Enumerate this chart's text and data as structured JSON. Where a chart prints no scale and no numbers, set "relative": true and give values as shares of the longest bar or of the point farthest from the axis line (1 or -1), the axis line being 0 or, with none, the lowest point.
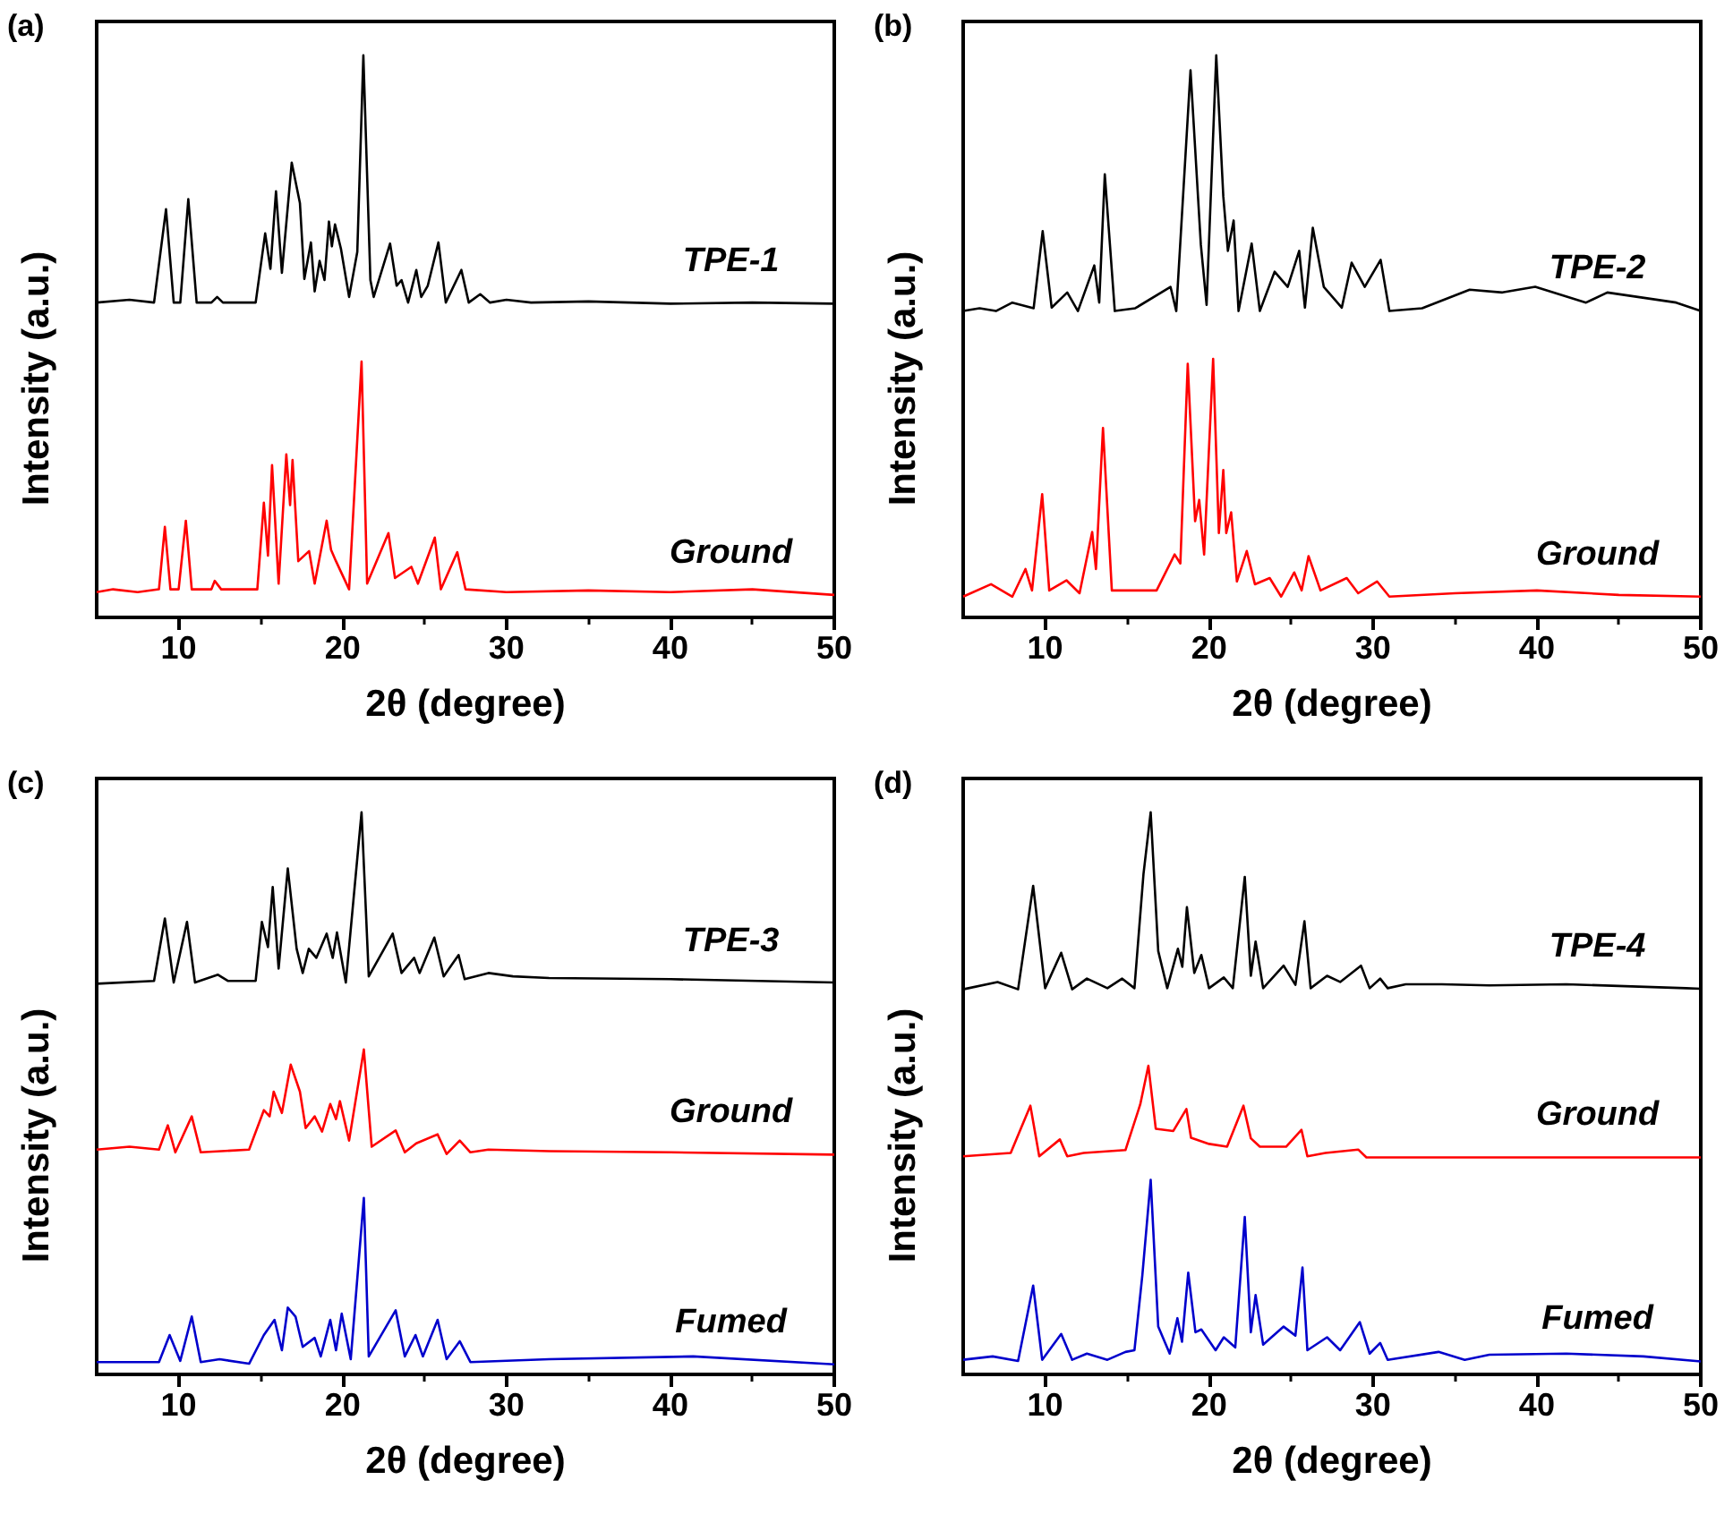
{
  "chart_data": [
    {
      "type": "line",
      "relative": true,
      "xlabel": "2θ (degree)",
      "ylabel": "Intensity (a.u.)",
      "annotations": [
        "(a)"
      ],
      "xlim": [
        5,
        50
      ],
      "xticks": [
        10,
        20,
        30,
        40,
        50
      ],
      "series": [
        {
          "name": "TPE-1",
          "color": "#000000",
          "x": [
            5,
            7,
            8.5,
            9.23,
            9.7,
            10.1,
            10.59,
            11.1,
            12.0,
            12.35,
            12.7,
            14.7,
            15.28,
            15.6,
            15.94,
            16.3,
            16.9,
            17.4,
            17.67,
            18.07,
            18.3,
            18.6,
            18.9,
            19.17,
            19.35,
            19.54,
            19.9,
            20.4,
            20.9,
            21.27,
            21.7,
            21.9,
            22.9,
            23.3,
            23.6,
            24.0,
            24.5,
            24.8,
            25.2,
            25.85,
            26.3,
            27.25,
            27.7,
            28.4,
            29,
            30,
            31.5,
            35,
            40,
            45,
            50
          ],
          "values": [
            0.56,
            0.565,
            0.56,
            0.726,
            0.56,
            0.56,
            0.744,
            0.56,
            0.56,
            0.57,
            0.56,
            0.56,
            0.683,
            0.62,
            0.758,
            0.613,
            0.809,
            0.737,
            0.602,
            0.667,
            0.58,
            0.634,
            0.6,
            0.704,
            0.66,
            0.699,
            0.656,
            0.57,
            0.65,
            1.0,
            0.6,
            0.57,
            0.665,
            0.59,
            0.6,
            0.56,
            0.618,
            0.57,
            0.59,
            0.667,
            0.56,
            0.618,
            0.56,
            0.575,
            0.56,
            0.565,
            0.56,
            0.562,
            0.558,
            0.56,
            0.558
          ]
        },
        {
          "name": "Ground",
          "color": "#ff0000",
          "x": [
            5,
            6,
            7.5,
            8.8,
            9.16,
            9.5,
            10.0,
            10.44,
            10.8,
            12.0,
            12.2,
            12.6,
            14.8,
            15.2,
            15.45,
            15.7,
            16.1,
            16.57,
            16.8,
            16.95,
            17.3,
            17.96,
            18.3,
            19.03,
            19.3,
            19.6,
            20.4,
            21.16,
            21.5,
            22.8,
            23.2,
            24.2,
            24.6,
            25.63,
            26.0,
            27.0,
            27.5,
            30,
            35,
            40,
            45,
            50
          ],
          "values": [
            0.045,
            0.05,
            0.045,
            0.05,
            0.161,
            0.05,
            0.05,
            0.172,
            0.05,
            0.05,
            0.065,
            0.05,
            0.05,
            0.204,
            0.11,
            0.271,
            0.06,
            0.29,
            0.2,
            0.28,
            0.1,
            0.118,
            0.06,
            0.172,
            0.12,
            0.1,
            0.05,
            0.455,
            0.06,
            0.15,
            0.07,
            0.09,
            0.06,
            0.142,
            0.05,
            0.116,
            0.05,
            0.045,
            0.048,
            0.045,
            0.05,
            0.04
          ]
        }
      ]
    },
    {
      "type": "line",
      "relative": true,
      "xlabel": "2θ (degree)",
      "ylabel": "Intensity (a.u.)",
      "annotations": [
        "(b)"
      ],
      "xlim": [
        5,
        50
      ],
      "xticks": [
        10,
        20,
        30,
        40,
        50
      ],
      "series": [
        {
          "name": "TPE-2",
          "color": "#000000",
          "x": [
            5,
            6,
            7,
            8,
            9.3,
            9.85,
            10.4,
            11.35,
            12,
            13.0,
            13.3,
            13.64,
            14.25,
            15.5,
            17.65,
            18.0,
            18.87,
            19.5,
            19.85,
            20.44,
            20.87,
            21.15,
            21.5,
            21.8,
            22.6,
            23.1,
            24.0,
            24.8,
            25.5,
            25.85,
            26.33,
            27.0,
            28.1,
            28.7,
            29.5,
            30.47,
            31.0,
            33,
            35.9,
            37.9,
            39.9,
            43.0,
            44.3,
            48.5,
            50
          ],
          "values": [
            0.545,
            0.55,
            0.545,
            0.56,
            0.55,
            0.687,
            0.551,
            0.578,
            0.545,
            0.626,
            0.56,
            0.788,
            0.545,
            0.55,
            0.588,
            0.545,
            0.973,
            0.663,
            0.556,
            1.0,
            0.749,
            0.652,
            0.706,
            0.545,
            0.665,
            0.545,
            0.615,
            0.588,
            0.652,
            0.551,
            0.693,
            0.588,
            0.551,
            0.631,
            0.588,
            0.636,
            0.545,
            0.55,
            0.583,
            0.578,
            0.588,
            0.56,
            0.578,
            0.56,
            0.545
          ]
        },
        {
          "name": "Ground",
          "color": "#ff0000",
          "x": [
            5,
            6.7,
            8.0,
            8.8,
            9.2,
            9.82,
            10.25,
            11.3,
            12.1,
            12.87,
            13.1,
            13.53,
            14.07,
            16.8,
            17.9,
            18.25,
            18.7,
            19.15,
            19.4,
            19.7,
            20.25,
            20.6,
            20.87,
            21.05,
            21.35,
            21.7,
            22.3,
            22.8,
            23.7,
            24.4,
            25.2,
            25.65,
            26.07,
            26.8,
            28.4,
            29.1,
            30.25,
            31.0,
            35,
            40,
            45,
            50
          ],
          "values": [
            0.037,
            0.059,
            0.037,
            0.086,
            0.048,
            0.219,
            0.048,
            0.066,
            0.043,
            0.152,
            0.086,
            0.337,
            0.048,
            0.048,
            0.112,
            0.096,
            0.451,
            0.171,
            0.209,
            0.112,
            0.46,
            0.15,
            0.262,
            0.15,
            0.187,
            0.064,
            0.118,
            0.059,
            0.07,
            0.037,
            0.08,
            0.048,
            0.109,
            0.048,
            0.07,
            0.043,
            0.064,
            0.037,
            0.043,
            0.048,
            0.04,
            0.037
          ]
        }
      ]
    },
    {
      "type": "line",
      "relative": true,
      "xlabel": "2θ (degree)",
      "ylabel": "Intensity (a.u.)",
      "annotations": [
        "(c)"
      ],
      "xlim": [
        5,
        50
      ],
      "xticks": [
        10,
        20,
        30,
        40,
        50
      ],
      "series": [
        {
          "name": "TPE-3",
          "color": "#000000",
          "x": [
            5,
            8.5,
            9.16,
            9.7,
            10.51,
            11.0,
            12.4,
            13.0,
            14.7,
            15.08,
            15.45,
            15.74,
            16.1,
            16.66,
            17.2,
            17.57,
            17.94,
            18.4,
            19.03,
            19.4,
            19.66,
            20.2,
            21.16,
            21.6,
            23.06,
            23.6,
            24.37,
            24.7,
            25.6,
            26.17,
            27.08,
            27.45,
            28.9,
            30.4,
            32.6,
            40,
            50
          ],
          "values": [
            0.695,
            0.7,
            0.811,
            0.697,
            0.805,
            0.697,
            0.711,
            0.7,
            0.7,
            0.805,
            0.76,
            0.867,
            0.722,
            0.9,
            0.757,
            0.714,
            0.757,
            0.741,
            0.784,
            0.741,
            0.786,
            0.697,
            1.0,
            0.708,
            0.784,
            0.714,
            0.741,
            0.714,
            0.777,
            0.708,
            0.746,
            0.703,
            0.714,
            0.708,
            0.705,
            0.703,
            0.697
          ]
        },
        {
          "name": "Ground",
          "color": "#ff0000",
          "x": [
            5,
            7,
            8.8,
            9.34,
            9.8,
            10.8,
            11.35,
            14.3,
            15.2,
            15.55,
            15.8,
            16.3,
            16.84,
            17.4,
            17.75,
            18.3,
            18.75,
            19.25,
            19.6,
            19.84,
            20.4,
            21.3,
            21.78,
            23.24,
            23.8,
            24.5,
            25.8,
            26.35,
            27.15,
            27.8,
            28.9,
            32.6,
            40,
            50
          ],
          "values": [
            0.4,
            0.405,
            0.4,
            0.443,
            0.395,
            0.459,
            0.395,
            0.4,
            0.47,
            0.459,
            0.503,
            0.465,
            0.551,
            0.503,
            0.438,
            0.459,
            0.432,
            0.481,
            0.454,
            0.486,
            0.416,
            0.578,
            0.405,
            0.434,
            0.395,
            0.411,
            0.427,
            0.392,
            0.416,
            0.395,
            0.4,
            0.397,
            0.395,
            0.391
          ]
        },
        {
          "name": "Fumed",
          "color": "#0000cc",
          "x": [
            5,
            8.8,
            9.45,
            10.1,
            10.8,
            11.35,
            12.5,
            14.3,
            15.2,
            15.85,
            16.3,
            16.66,
            17.13,
            17.57,
            18.3,
            18.67,
            19.25,
            19.6,
            19.95,
            20.5,
            21.3,
            21.6,
            23.24,
            23.8,
            24.45,
            24.9,
            25.8,
            26.35,
            27.15,
            27.8,
            32.6,
            41.4,
            50
          ],
          "values": [
            0.022,
            0.022,
            0.07,
            0.024,
            0.103,
            0.022,
            0.027,
            0.019,
            0.07,
            0.097,
            0.043,
            0.119,
            0.103,
            0.049,
            0.065,
            0.032,
            0.097,
            0.043,
            0.108,
            0.027,
            0.314,
            0.032,
            0.114,
            0.032,
            0.07,
            0.032,
            0.097,
            0.027,
            0.059,
            0.022,
            0.027,
            0.032,
            0.018
          ]
        }
      ]
    },
    {
      "type": "line",
      "relative": true,
      "xlabel": "2θ (degree)",
      "ylabel": "Intensity (a.u.)",
      "annotations": [
        "(d)"
      ],
      "xlim": [
        5,
        50
      ],
      "xticks": [
        10,
        20,
        30,
        40,
        50
      ],
      "series": [
        {
          "name": "TPE-4",
          "color": "#000000",
          "x": [
            5,
            7.1,
            8.35,
            9.27,
            10.0,
            10.98,
            11.65,
            12.55,
            13.8,
            14.7,
            15.45,
            16.0,
            16.44,
            16.9,
            17.45,
            18.1,
            18.37,
            18.65,
            19.1,
            19.53,
            20.0,
            20.9,
            21.45,
            22.18,
            22.55,
            22.84,
            23.3,
            24.55,
            25.27,
            25.82,
            26.2,
            27.2,
            28.0,
            29.27,
            29.8,
            30.44,
            30.9,
            32.0,
            34.2,
            37.1,
            41.8,
            49.1,
            50
          ],
          "values": [
            0.685,
            0.698,
            0.685,
            0.869,
            0.687,
            0.75,
            0.685,
            0.704,
            0.687,
            0.704,
            0.687,
            0.89,
            1.0,
            0.753,
            0.687,
            0.757,
            0.725,
            0.831,
            0.714,
            0.746,
            0.687,
            0.706,
            0.687,
            0.885,
            0.709,
            0.77,
            0.687,
            0.727,
            0.693,
            0.806,
            0.687,
            0.709,
            0.698,
            0.727,
            0.687,
            0.704,
            0.687,
            0.694,
            0.694,
            0.692,
            0.694,
            0.687,
            0.686
          ]
        },
        {
          "name": "Ground",
          "color": "#ff0000",
          "x": [
            5,
            7.9,
            9.1,
            9.64,
            10.9,
            11.35,
            12.35,
            14.9,
            15.8,
            16.3,
            16.75,
            17.82,
            18.62,
            18.9,
            20.0,
            21.1,
            22.1,
            22.55,
            23.1,
            24.7,
            25.64,
            26.0,
            27.1,
            29.1,
            29.6,
            50
          ],
          "values": [
            0.388,
            0.394,
            0.478,
            0.388,
            0.418,
            0.388,
            0.394,
            0.399,
            0.48,
            0.549,
            0.437,
            0.433,
            0.472,
            0.421,
            0.41,
            0.405,
            0.478,
            0.42,
            0.405,
            0.405,
            0.435,
            0.388,
            0.394,
            0.4,
            0.386,
            0.386
          ]
        },
        {
          "name": "Fumed",
          "color": "#0000cc",
          "x": [
            5,
            6.8,
            8.35,
            9.27,
            9.82,
            10.98,
            11.65,
            12.55,
            13.8,
            14.9,
            15.45,
            15.93,
            16.44,
            16.9,
            17.6,
            18.07,
            18.35,
            18.73,
            19.17,
            19.53,
            20.4,
            20.9,
            21.6,
            22.18,
            22.55,
            22.84,
            23.3,
            24.55,
            25.27,
            25.7,
            26.0,
            27.2,
            28.0,
            29.2,
            29.8,
            30.44,
            30.9,
            34.0,
            35.6,
            37.1,
            41.8,
            46.5,
            50
          ],
          "values": [
            0.026,
            0.032,
            0.024,
            0.158,
            0.026,
            0.072,
            0.026,
            0.037,
            0.026,
            0.04,
            0.043,
            0.176,
            0.346,
            0.085,
            0.037,
            0.1,
            0.058,
            0.181,
            0.075,
            0.08,
            0.043,
            0.066,
            0.048,
            0.28,
            0.075,
            0.141,
            0.053,
            0.085,
            0.069,
            0.19,
            0.043,
            0.066,
            0.043,
            0.093,
            0.037,
            0.056,
            0.026,
            0.04,
            0.026,
            0.035,
            0.037,
            0.032,
            0.023
          ]
        }
      ]
    }
  ]
}
